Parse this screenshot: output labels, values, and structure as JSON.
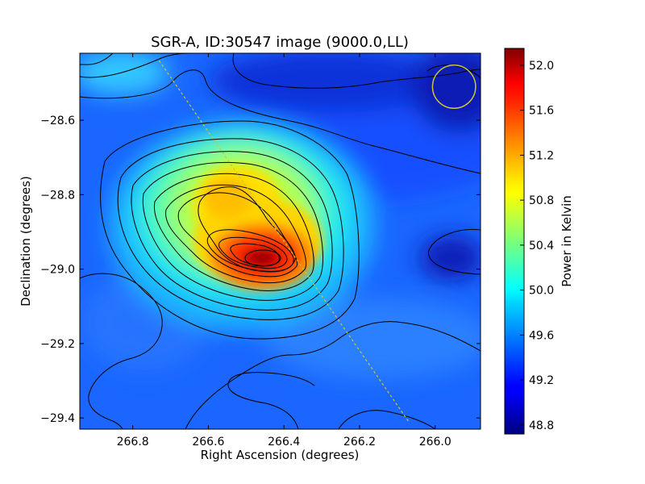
{
  "chart_data": {
    "type": "heatmap",
    "title": "SGR-A, ID:30547 image (9000.0,LL)",
    "xlabel": "Right Ascension (degrees)",
    "ylabel": "Declination (degrees)",
    "colorbar_label": "Power in Kelvin",
    "xlim": [
      266.94,
      265.88
    ],
    "ylim": [
      -29.43,
      -28.42
    ],
    "x_ticks": [
      266.8,
      266.6,
      266.4,
      266.2,
      266.0
    ],
    "x_tick_labels": [
      "266.8",
      "266.6",
      "266.4",
      "266.2",
      "266.0"
    ],
    "y_ticks": [
      -28.6,
      -28.8,
      -29.0,
      -29.2,
      -29.4
    ],
    "y_tick_labels": [
      "−28.6",
      "−28.8",
      "−29.0",
      "−29.2",
      "−29.4"
    ],
    "colorbar_range": [
      48.72,
      52.15
    ],
    "colorbar_ticks": [
      48.8,
      49.2,
      49.6,
      50.0,
      50.4,
      50.8,
      51.2,
      51.6,
      52.0
    ],
    "colorbar_tick_labels": [
      "48.8",
      "49.2",
      "49.6",
      "50.0",
      "50.4",
      "50.8",
      "51.2",
      "51.6",
      "52.0"
    ],
    "colormap": "jet",
    "contour_color": "#000000",
    "peak": {
      "ra": 266.45,
      "dec": -28.98,
      "value": 52.1
    },
    "secondary_peak": {
      "ra": 266.54,
      "dec": -28.83,
      "value": 51.3
    },
    "beam_circle": {
      "ra": 265.95,
      "dec": -28.51,
      "radius_deg": 0.057,
      "color": "#c8c832"
    },
    "scan_line": {
      "start": {
        "ra": 266.73,
        "dec": -28.44
      },
      "end": {
        "ra": 266.07,
        "dec": -29.41
      },
      "color": "#c8c832",
      "style": "dashed"
    }
  }
}
